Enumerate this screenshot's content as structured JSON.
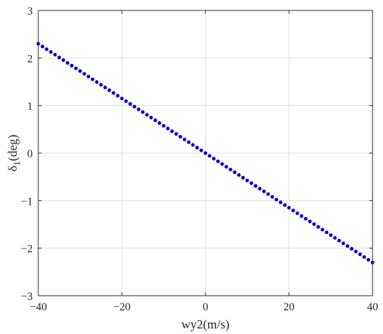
{
  "chart_data": {
    "type": "scatter",
    "xlabel": "wy2(m/s)",
    "ylabel_main": "δ",
    "ylabel_sub": "1",
    "ylabel_rest": "(deg)",
    "xlim": [
      -40,
      40
    ],
    "ylim": [
      -3,
      3
    ],
    "xticks": [
      -40,
      -20,
      0,
      20,
      40
    ],
    "yticks": [
      -3,
      -2,
      -1,
      0,
      1,
      2,
      3
    ],
    "xtick_labels": [
      "−40",
      "−20",
      "0",
      "20",
      "40"
    ],
    "ytick_labels": [
      "−3",
      "−2",
      "−1",
      "0",
      "1",
      "2",
      "3"
    ],
    "grid": true,
    "series": [
      {
        "color": "#0000cc",
        "marker": "dot",
        "x_start": -40,
        "x_end": 40,
        "x_step": 1,
        "y_at_x_start": 2.3,
        "y_at_x_end": -2.3
      }
    ]
  }
}
